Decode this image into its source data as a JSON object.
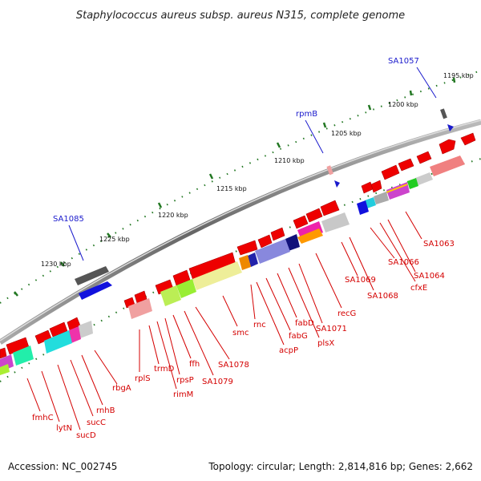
{
  "title": "Staphylococcus aureus subsp. aureus N315, complete genome",
  "accession": "Accession: NC_002745",
  "summary": "Topology: circular; Length: 2,814,816 bp; Genes: 2,662",
  "kbp_ticks": [
    "1195 kbp",
    "1200 kbp",
    "1205 kbp",
    "1210 kbp",
    "1215 kbp",
    "1220 kbp",
    "1225 kbp",
    "1230 kbp"
  ],
  "markers": [
    "SA1057",
    "rpmB",
    "SA1085"
  ],
  "genes": [
    "fmhC",
    "lytN",
    "sucD",
    "sucC",
    "rnhB",
    "rbgA",
    "rplS",
    "trmD",
    "rimM",
    "rpsP",
    "ffh",
    "SA1079",
    "SA1078",
    "smc",
    "rnc",
    "acpP",
    "fabG",
    "fabD",
    "plsX",
    "SA1071",
    "recG",
    "SA1069",
    "SA1068",
    "cfxE",
    "SA1066",
    "SA1064",
    "SA1063"
  ],
  "colors": {
    "gene_red": "#ee0000",
    "marker_blue": "#1a1acc",
    "backbone": "#888888",
    "tick_green": "#227722"
  }
}
